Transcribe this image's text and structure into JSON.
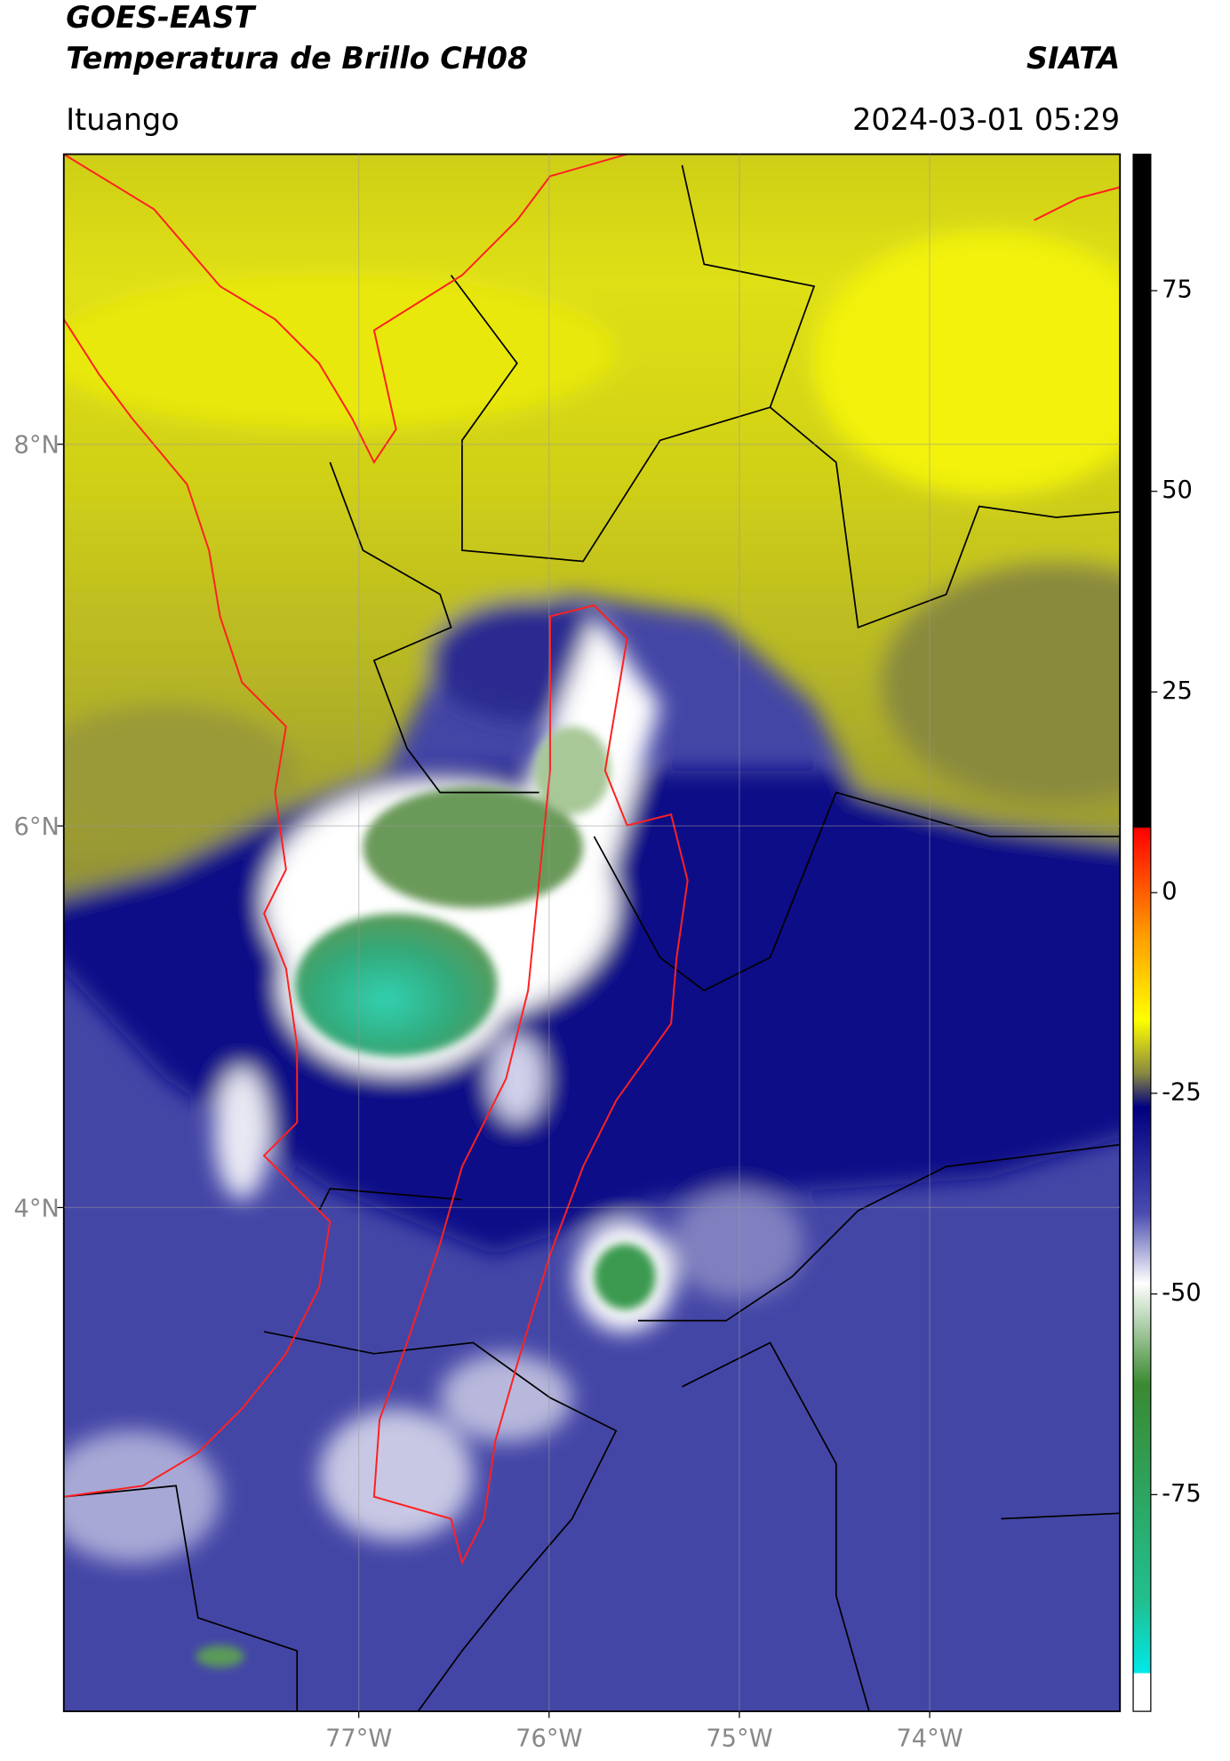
{
  "header": {
    "title": "GOES-EAST",
    "subtitle": "Temperatura de Brillo CH08",
    "source": "SIATA",
    "location": "Ituango",
    "timestamp": "2024-03-01 05:29"
  },
  "map": {
    "lonlim": [
      -78.55,
      -73.0
    ],
    "latlim": [
      1.36,
      9.52
    ],
    "lon_ticks": [
      {
        "value": -77,
        "label": "77°W"
      },
      {
        "value": -76,
        "label": "76°W"
      },
      {
        "value": -75,
        "label": "75°W"
      },
      {
        "value": -74,
        "label": "74°W"
      }
    ],
    "lat_ticks": [
      {
        "value": 8,
        "label": "8°N"
      },
      {
        "value": 6,
        "label": "6°N"
      },
      {
        "value": 4,
        "label": "4°N"
      }
    ],
    "grid": true
  },
  "colorbar": {
    "lim": [
      -102,
      92
    ],
    "ticks": [
      75,
      50,
      25,
      0,
      -25,
      -50,
      -75
    ]
  }
}
